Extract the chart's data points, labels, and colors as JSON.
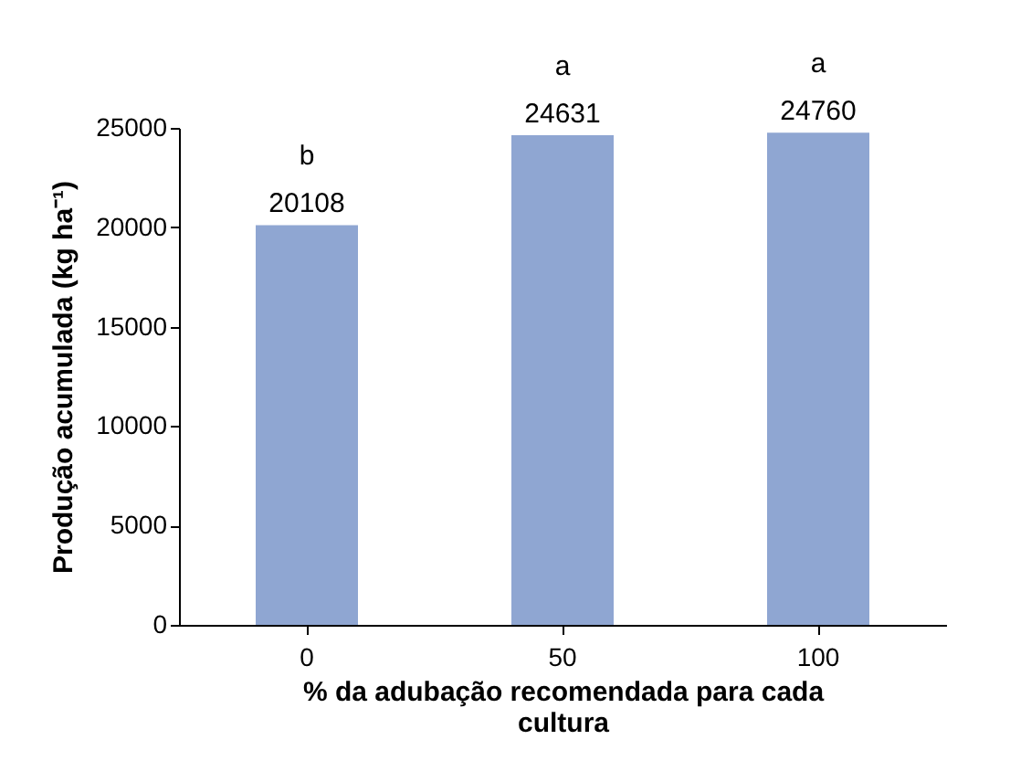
{
  "chart_data": {
    "type": "bar",
    "xlabel": "% da adubação recomendada para cada cultura",
    "ylabel": "Produção acumulada (kg ha⁻¹)",
    "categories": [
      "0",
      "50",
      "100"
    ],
    "values": [
      20108,
      24631,
      24760
    ],
    "color": "#8fa6d2",
    "ylim": [
      0,
      25000
    ],
    "yticks": [
      0,
      5000,
      10000,
      15000,
      20000,
      25000
    ],
    "grid": false,
    "data_labels": true,
    "annotations": [
      {
        "text": "b",
        "x": "0",
        "y": 20108
      },
      {
        "text": "a",
        "x": "50",
        "y": 24631
      },
      {
        "text": "a",
        "x": "100",
        "y": 24760
      }
    ]
  }
}
